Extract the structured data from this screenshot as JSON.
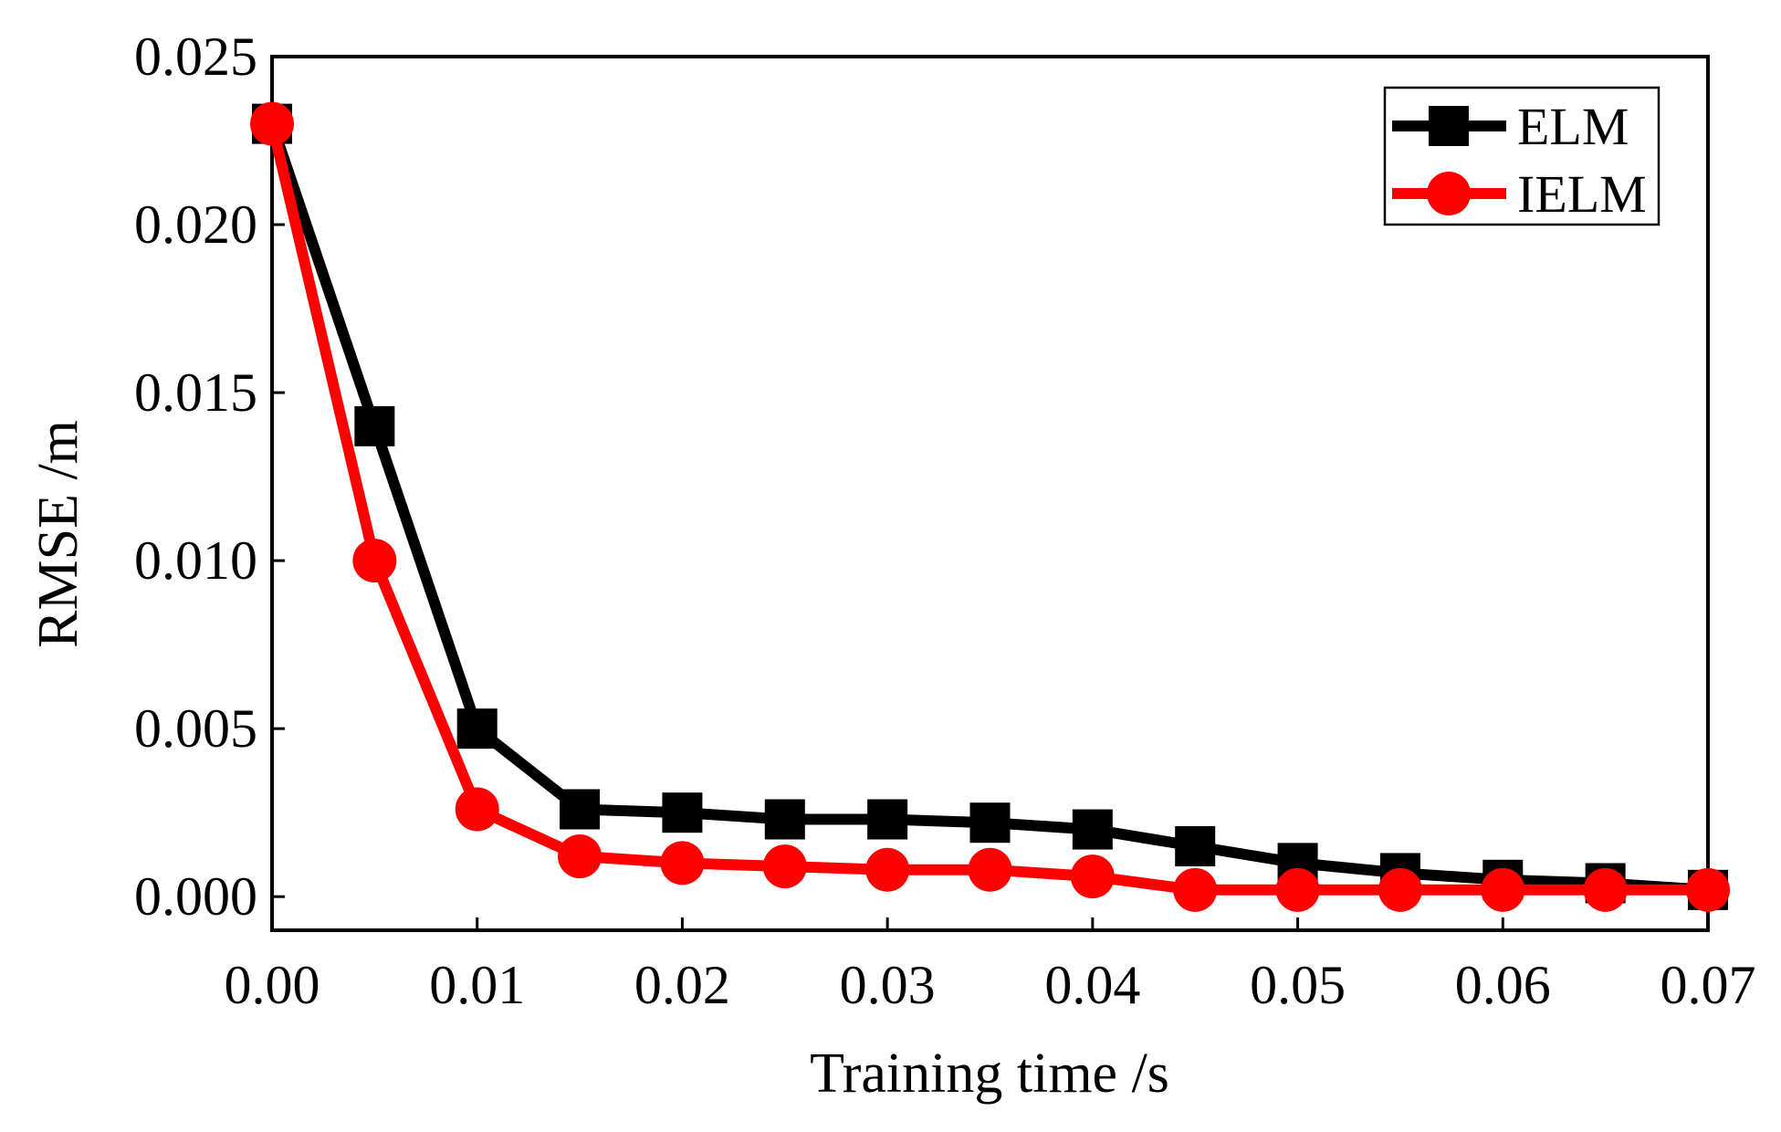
{
  "chart_data": {
    "type": "line",
    "title": "",
    "xlabel": "Training time /s",
    "ylabel": "RMSE /m",
    "xlim": [
      0,
      0.07
    ],
    "ylim": [
      -0.001,
      0.025
    ],
    "xticks": [
      0.0,
      0.01,
      0.02,
      0.03,
      0.04,
      0.05,
      0.06,
      0.07
    ],
    "xtick_labels": [
      "0.00",
      "0.01",
      "0.02",
      "0.03",
      "0.04",
      "0.05",
      "0.06",
      "0.07"
    ],
    "yticks": [
      0.0,
      0.005,
      0.01,
      0.015,
      0.02,
      0.025
    ],
    "ytick_labels": [
      "0.000",
      "0.005",
      "0.010",
      "0.015",
      "0.020",
      "0.025"
    ],
    "grid": false,
    "legend_position": "top-right",
    "series": [
      {
        "name": "ELM",
        "color": "#000000",
        "marker": "square",
        "x": [
          0.0,
          0.005,
          0.01,
          0.015,
          0.02,
          0.025,
          0.03,
          0.035,
          0.04,
          0.045,
          0.05,
          0.055,
          0.06,
          0.065,
          0.07
        ],
        "values": [
          0.023,
          0.014,
          0.005,
          0.0026,
          0.0025,
          0.0023,
          0.0023,
          0.0022,
          0.002,
          0.0015,
          0.001,
          0.0007,
          0.0005,
          0.0004,
          0.0002
        ]
      },
      {
        "name": "IELM",
        "color": "#ff0000",
        "marker": "circle",
        "x": [
          0.0,
          0.005,
          0.01,
          0.015,
          0.02,
          0.025,
          0.03,
          0.035,
          0.04,
          0.045,
          0.05,
          0.055,
          0.06,
          0.065,
          0.07
        ],
        "values": [
          0.023,
          0.01,
          0.0026,
          0.0012,
          0.001,
          0.0009,
          0.0008,
          0.0008,
          0.0006,
          0.0002,
          0.0002,
          0.0002,
          0.0002,
          0.0002,
          0.0002
        ]
      }
    ]
  }
}
